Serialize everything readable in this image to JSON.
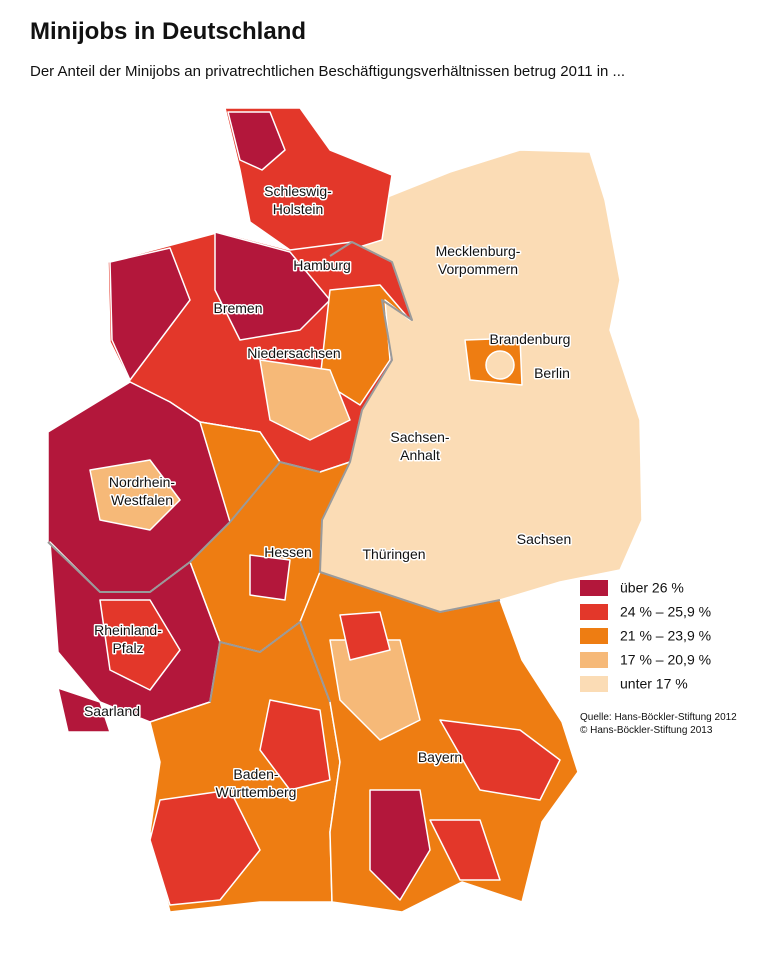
{
  "header": {
    "title": "Minijobs in Deutschland",
    "subtitle": "Der Anteil der Minijobs an privatrechtlichen Beschäftigungsverhältnissen betrug 2011 in ..."
  },
  "map": {
    "labels": [
      {
        "lines": [
          "Schleswig-",
          "Holstein"
        ]
      },
      {
        "lines": [
          "Hamburg"
        ]
      },
      {
        "lines": [
          "Mecklenburg-",
          "Vorpommern"
        ]
      },
      {
        "lines": [
          "Bremen"
        ]
      },
      {
        "lines": [
          "Niedersachsen"
        ]
      },
      {
        "lines": [
          "Brandenburg"
        ]
      },
      {
        "lines": [
          "Berlin"
        ]
      },
      {
        "lines": [
          "Sachsen-",
          "Anhalt"
        ]
      },
      {
        "lines": [
          "Nordrhein-",
          "Westfalen"
        ]
      },
      {
        "lines": [
          "Hessen"
        ]
      },
      {
        "lines": [
          "Thüringen"
        ]
      },
      {
        "lines": [
          "Sachsen"
        ]
      },
      {
        "lines": [
          "Rheinland-",
          "Pfalz"
        ]
      },
      {
        "lines": [
          "Saarland"
        ]
      },
      {
        "lines": [
          "Bayern"
        ]
      },
      {
        "lines": [
          "Baden-",
          "Württemberg"
        ]
      }
    ]
  },
  "legend": {
    "items": [
      {
        "label": "über 26 %",
        "color": "#b3173b"
      },
      {
        "label": "24 % – 25,9 %",
        "color": "#e3372a"
      },
      {
        "label": "21 % – 23,9 %",
        "color": "#ee7d12"
      },
      {
        "label": "17 % – 20,9 %",
        "color": "#f6b978"
      },
      {
        "label": "unter 17 %",
        "color": "#fbdcb5"
      }
    ]
  },
  "source": [
    "Quelle: Hans-Böckler-Stiftung 2012",
    "© Hans-Böckler-Stiftung 2013"
  ]
}
